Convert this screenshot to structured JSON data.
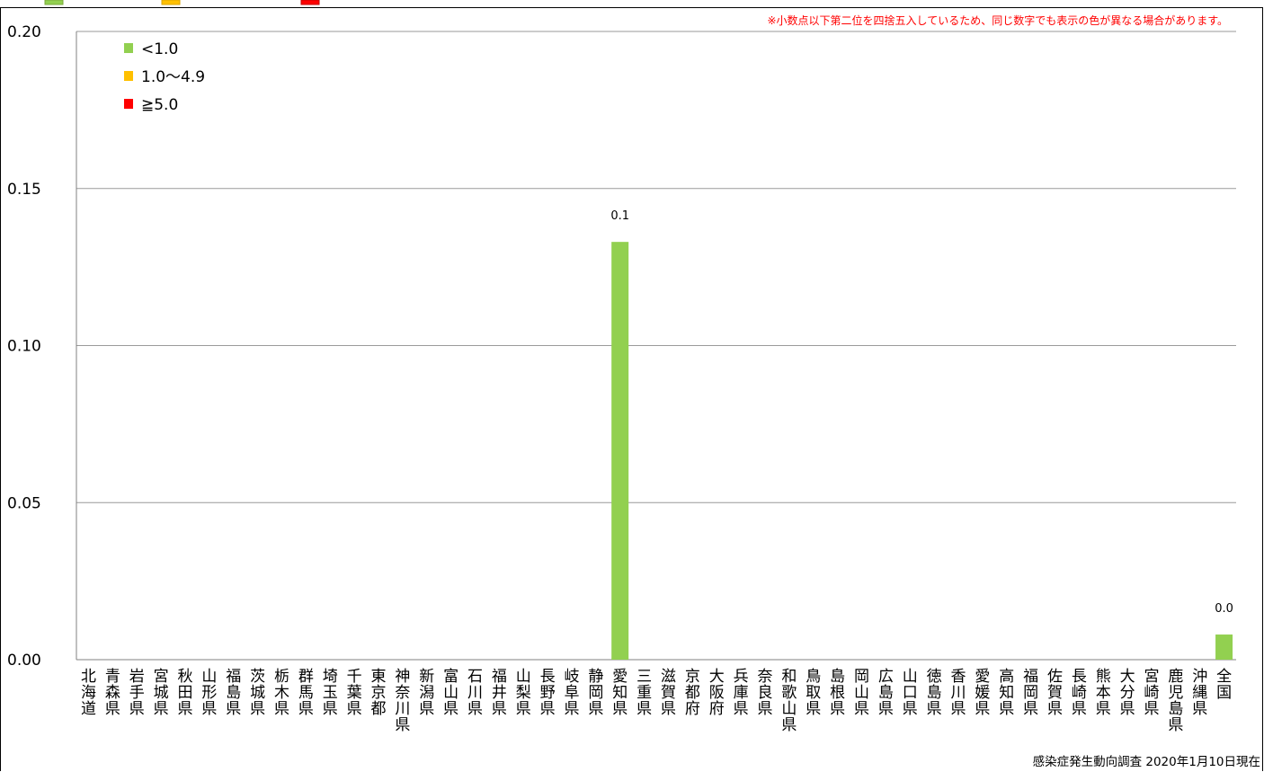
{
  "chart_data": {
    "type": "bar",
    "categories": [
      "北海道",
      "青森県",
      "岩手県",
      "宮城県",
      "秋田県",
      "山形県",
      "福島県",
      "茨城県",
      "栃木県",
      "群馬県",
      "埼玉県",
      "千葉県",
      "東京都",
      "神奈川県",
      "新潟県",
      "富山県",
      "石川県",
      "福井県",
      "山梨県",
      "長野県",
      "岐阜県",
      "静岡県",
      "愛知県",
      "三重県",
      "滋賀県",
      "京都府",
      "大阪府",
      "兵庫県",
      "奈良県",
      "和歌山県",
      "鳥取県",
      "島根県",
      "岡山県",
      "広島県",
      "山口県",
      "徳島県",
      "香川県",
      "愛媛県",
      "高知県",
      "福岡県",
      "佐賀県",
      "長崎県",
      "熊本県",
      "大分県",
      "宮崎県",
      "鹿児島県",
      "沖縄県",
      "全国"
    ],
    "values": [
      0,
      0,
      0,
      0,
      0,
      0,
      0,
      0,
      0,
      0,
      0,
      0,
      0,
      0,
      0,
      0,
      0,
      0,
      0,
      0,
      0,
      0,
      0.133,
      0,
      0,
      0,
      0,
      0,
      0,
      0,
      0,
      0,
      0,
      0,
      0,
      0,
      0,
      0,
      0,
      0,
      0,
      0,
      0,
      0,
      0,
      0,
      0,
      0.008
    ],
    "data_labels": {
      "22": "0.1",
      "47": "0.0"
    },
    "ylim": [
      0,
      0.2
    ],
    "yticks": [
      "0.00",
      "0.05",
      "0.10",
      "0.15",
      "0.20"
    ],
    "grid": true,
    "legend_position": "top-left",
    "legend": [
      {
        "label": "<1.0",
        "color": "#92d050"
      },
      {
        "label": "1.0～4.9",
        "color": "#ffc000"
      },
      {
        "label": "≧5.0",
        "color": "#ff0000"
      }
    ],
    "bar_color": "#92d050",
    "note": "※小数点以下第二位を四捨五入しているため、同じ数字でも表示の色が異なる場合があります。",
    "source": "感染症発生動向調査 2020年1月10日現在"
  }
}
